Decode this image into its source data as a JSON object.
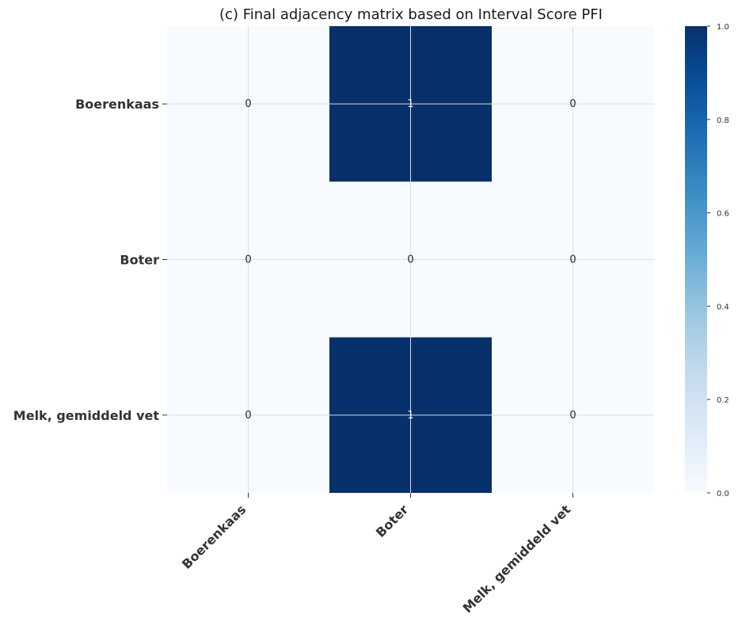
{
  "chart_data": {
    "type": "heatmap",
    "title": "(c) Final adjacency matrix based on Interval Score PFI",
    "rows": [
      "Boerenkaas",
      "Boter",
      "Melk, gemiddeld vet"
    ],
    "columns": [
      "Boerenkaas",
      "Boter",
      "Melk, gemiddeld vet"
    ],
    "values": [
      [
        0,
        1,
        0
      ],
      [
        0,
        0,
        0
      ],
      [
        0,
        1,
        0
      ]
    ],
    "cell_labels": [
      [
        "0",
        "1",
        "0"
      ],
      [
        "0",
        "0",
        "0"
      ],
      [
        "0",
        "1",
        "0"
      ]
    ],
    "colormap": "Blues",
    "colors": {
      "low": "#f7fbff",
      "high": "#08306b",
      "grid": "#d9dde6"
    },
    "colorbar": {
      "range": [
        0,
        1
      ],
      "ticks": [
        "0.0",
        "0.2",
        "0.4",
        "0.6",
        "0.8",
        "1.0"
      ]
    },
    "grid": true
  }
}
